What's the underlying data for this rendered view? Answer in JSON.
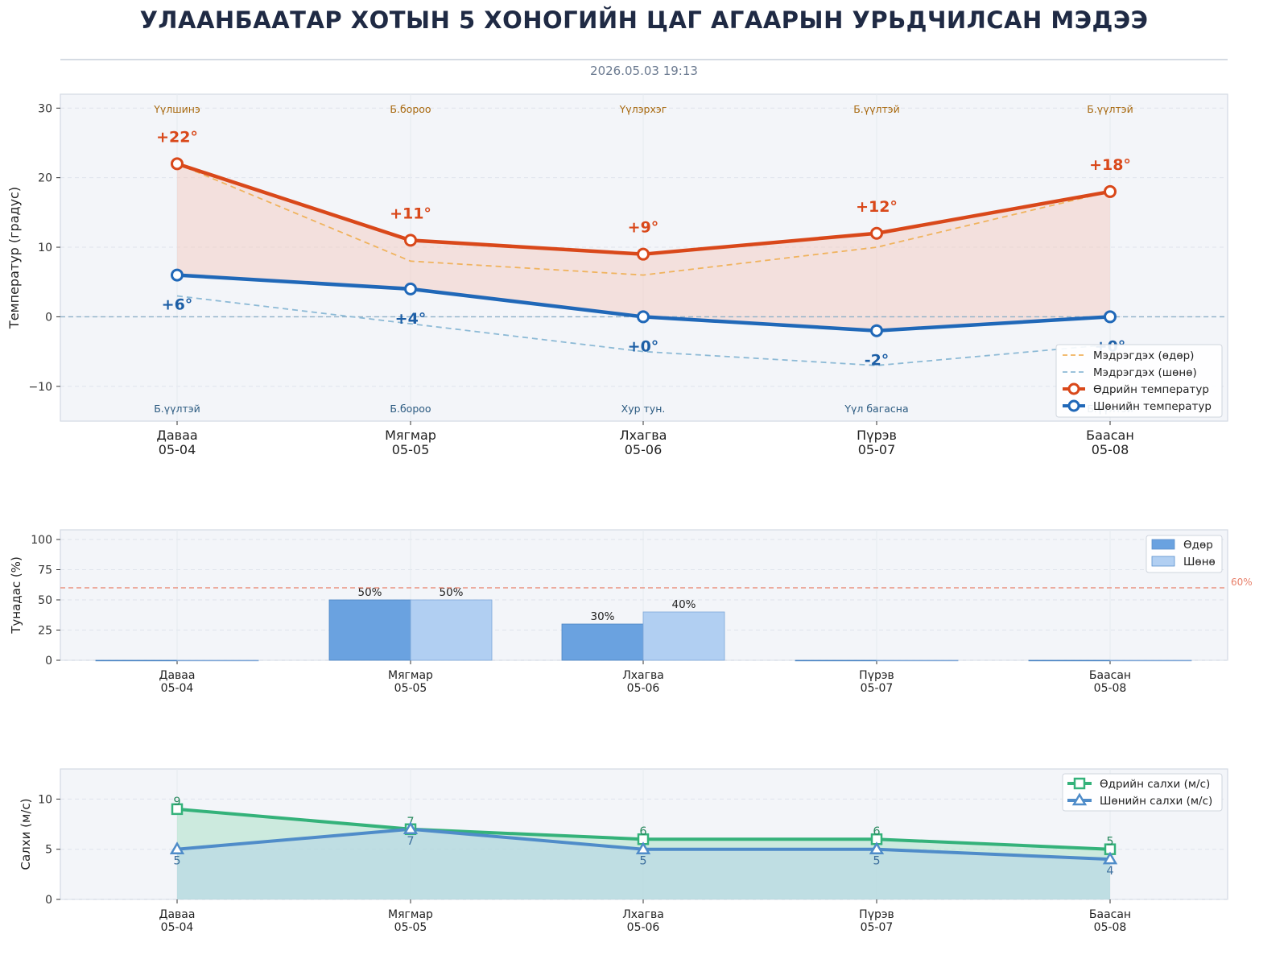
{
  "header": {
    "title": "УЛААНБААТАР ХОТЫН 5 ХОНОГИЙН ЦАГ АГААРЫН УРЬДЧИЛСАН МЭДЭЭ",
    "timestamp": "2026.05.03 19:13"
  },
  "colors": {
    "day_temp": "#d9481a",
    "night_temp": "#2068b8",
    "feels_day": "#f0b35e",
    "feels_night": "#8dbad6",
    "precip_day": "#6aa2e0",
    "precip_night": "#b1cff2",
    "wind_day": "#34b27a",
    "wind_night": "#4f8cc9",
    "threshold": "#e8806a",
    "panel_bg": "#f3f5f9"
  },
  "chart_data": [
    {
      "type": "line",
      "categories": [
        "Даваа\n05-04",
        "Мягмар\n05-05",
        "Лхагва\n05-06",
        "Пүрэв\n05-07",
        "Баасан\n05-08"
      ],
      "ylabel": "Температур (градус)",
      "ylim": [
        -15,
        32
      ],
      "yticks": [
        "−10",
        "0",
        "10",
        "20",
        "30"
      ],
      "ytick_values": [
        -10,
        0,
        10,
        20,
        30
      ],
      "grid": true,
      "legend_position": "lower-right",
      "series": [
        {
          "name": "Мэдрэгдэх (өдөр)",
          "values": [
            22,
            8,
            6,
            10,
            18
          ],
          "style": "dashed"
        },
        {
          "name": "Мэдрэгдэх (шөнө)",
          "values": [
            3,
            -1,
            -5,
            -7,
            -4
          ],
          "style": "dashed"
        },
        {
          "name": "Өдрийн температур",
          "values": [
            22,
            11,
            9,
            12,
            18
          ],
          "labels": [
            "+22°",
            "+11°",
            "+9°",
            "+12°",
            "+18°"
          ]
        },
        {
          "name": "Шөнийн температур",
          "values": [
            6,
            4,
            0,
            -2,
            0
          ],
          "labels": [
            "+6°",
            "+4°",
            "+0°",
            "-2°",
            "+0°"
          ]
        }
      ],
      "annotations_day": [
        "Үүлшинэ",
        "Б.бороо",
        "Үүлэрхэг",
        "Б.үүлтэй",
        "Б.үүлтэй"
      ],
      "annotations_night": [
        "Б.үүлтэй",
        "Б.бороо",
        "Хур тун.",
        "Үүл багасна",
        "Б.үүлтэй"
      ]
    },
    {
      "type": "bar",
      "categories": [
        "Даваа\n05-04",
        "Мягмар\n05-05",
        "Лхагва\n05-06",
        "Пүрэв\n05-07",
        "Баасан\n05-08"
      ],
      "ylabel": "Тунадас (%)",
      "ylim": [
        0,
        108
      ],
      "yticks": [
        "0",
        "25",
        "50",
        "75",
        "100"
      ],
      "ytick_values": [
        0,
        25,
        50,
        75,
        100
      ],
      "grid": true,
      "legend_position": "top-right",
      "series": [
        {
          "name": "Өдөр",
          "values": [
            0,
            50,
            30,
            0,
            0
          ],
          "labels": [
            "",
            "50%",
            "30%",
            "",
            ""
          ]
        },
        {
          "name": "Шөнө",
          "values": [
            0,
            50,
            40,
            0,
            0
          ],
          "labels": [
            "",
            "50%",
            "40%",
            "",
            ""
          ]
        }
      ],
      "threshold": {
        "value": 60,
        "label": "60%"
      }
    },
    {
      "type": "line",
      "categories": [
        "Даваа\n05-04",
        "Мягмар\n05-05",
        "Лхагва\n05-06",
        "Пүрэв\n05-07",
        "Баасан\n05-08"
      ],
      "ylabel": "Салхи (м/с)",
      "ylim": [
        0,
        13
      ],
      "yticks": [
        "0",
        "5",
        "10"
      ],
      "ytick_values": [
        0,
        5,
        10
      ],
      "grid": true,
      "legend_position": "top-right",
      "series": [
        {
          "name": "Өдрийн салхи (м/с)",
          "values": [
            9,
            7,
            6,
            6,
            5
          ],
          "labels": [
            "9",
            "7",
            "6",
            "6",
            "5"
          ]
        },
        {
          "name": "Шөнийн салхи (м/с)",
          "values": [
            5,
            7,
            5,
            5,
            4
          ],
          "labels": [
            "5",
            "7",
            "5",
            "5",
            "4"
          ]
        }
      ]
    }
  ]
}
